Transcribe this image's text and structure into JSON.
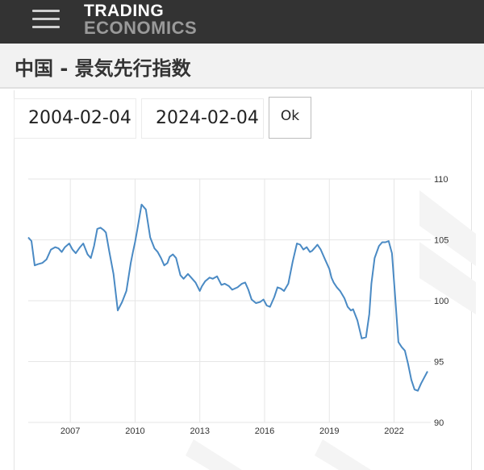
{
  "header": {
    "logo_line1": "TRADING",
    "logo_line2": "ECONOMICS"
  },
  "page": {
    "title": "中国 - 景気先行指数"
  },
  "controls": {
    "start_date": "2004-02-04",
    "end_date": "2024-02-04",
    "ok_label": "Ok"
  },
  "icons": {
    "menu": "hamburger-menu-icon"
  },
  "colors": {
    "topbar": "#333333",
    "line": "#4a8ac4",
    "grid": "#e6e6e6"
  },
  "chart_data": {
    "type": "line",
    "title": "",
    "xlabel": "",
    "ylabel": "",
    "x_ticks": [
      "2007",
      "2010",
      "2013",
      "2016",
      "2019",
      "2022"
    ],
    "y_ticks": [
      "90",
      "95",
      "100",
      "105",
      "110"
    ],
    "ylim": [
      90,
      110
    ],
    "xlim": [
      2005.05,
      2023.55
    ],
    "y_axis_position": "right",
    "grid": true,
    "series": [
      {
        "x": [
          2005.05,
          2005.2,
          2005.35,
          2005.5,
          2005.7,
          2005.9,
          2006.1,
          2006.3,
          2006.45,
          2006.6,
          2006.75,
          2006.95,
          2007.1,
          2007.25,
          2007.45,
          2007.6,
          2007.8,
          2007.95,
          2008.1,
          2008.25,
          2008.4,
          2008.55,
          2008.65,
          2008.8,
          2009.0,
          2009.2,
          2009.4,
          2009.6,
          2009.8,
          2009.9,
          2010.0,
          2010.1,
          2010.3,
          2010.5,
          2010.7,
          2010.9,
          2011.05,
          2011.2,
          2011.35,
          2011.5,
          2011.6,
          2011.75,
          2011.9,
          2012.1,
          2012.25,
          2012.45,
          2012.6,
          2012.8,
          2013.0,
          2013.1,
          2013.25,
          2013.45,
          2013.6,
          2013.8,
          2014.0,
          2014.15,
          2014.35,
          2014.5,
          2014.75,
          2014.95,
          2015.1,
          2015.25,
          2015.4,
          2015.6,
          2015.8,
          2015.95,
          2016.1,
          2016.25,
          2016.45,
          2016.6,
          2016.75,
          2016.9,
          2017.1,
          2017.3,
          2017.5,
          2017.65,
          2017.8,
          2017.95,
          2018.1,
          2018.2,
          2018.35,
          2018.45,
          2018.6,
          2018.8,
          2019.0,
          2019.1,
          2019.2,
          2019.35,
          2019.5,
          2019.7,
          2019.85,
          2020.0,
          2020.1,
          2020.3,
          2020.5,
          2020.7,
          2020.85,
          2020.95,
          2021.1,
          2021.3,
          2021.45,
          2021.6,
          2021.75,
          2021.9,
          2022.05,
          2022.2,
          2022.35,
          2022.5,
          2022.65,
          2022.8,
          2022.95,
          2023.1,
          2023.25,
          2023.55
        ],
        "y": [
          105.2,
          104.9,
          102.9,
          103.0,
          103.1,
          103.4,
          104.2,
          104.4,
          104.3,
          104.0,
          104.4,
          104.7,
          104.2,
          103.9,
          104.4,
          104.7,
          103.8,
          103.5,
          104.5,
          105.9,
          106.0,
          105.8,
          105.6,
          104.1,
          102.2,
          99.2,
          99.9,
          100.8,
          103.1,
          104.0,
          104.8,
          105.8,
          107.9,
          107.5,
          105.2,
          104.3,
          104.0,
          103.5,
          102.9,
          103.1,
          103.6,
          103.8,
          103.5,
          102.1,
          101.8,
          102.2,
          101.9,
          101.5,
          100.8,
          101.2,
          101.6,
          101.9,
          101.8,
          102.0,
          101.3,
          101.4,
          101.2,
          100.9,
          101.1,
          101.4,
          101.5,
          100.9,
          100.1,
          99.8,
          99.9,
          100.1,
          99.6,
          99.5,
          100.3,
          101.1,
          101.0,
          100.8,
          101.4,
          103.2,
          104.7,
          104.6,
          104.2,
          104.4,
          104.0,
          104.1,
          104.4,
          104.6,
          104.2,
          103.4,
          102.6,
          101.9,
          101.5,
          101.1,
          100.8,
          100.2,
          99.5,
          99.2,
          99.3,
          98.4,
          96.9,
          97.0,
          98.9,
          101.4,
          103.5,
          104.5,
          104.8,
          104.8,
          104.9,
          103.9,
          100.3,
          96.6,
          96.2,
          95.9,
          94.8,
          93.5,
          92.7,
          92.6,
          93.2,
          94.2
        ]
      }
    ]
  }
}
